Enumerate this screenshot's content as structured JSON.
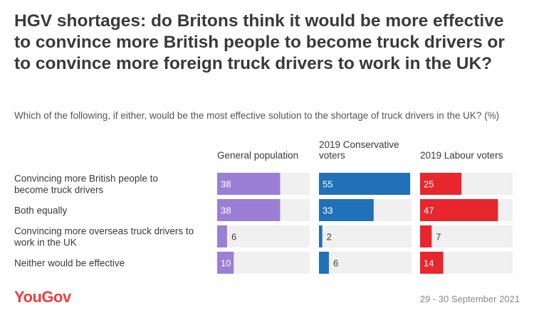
{
  "title": "HGV shortages: do Britons think it would be more effective to convince more British people to become truck drivers or to convince more foreign truck drivers to work in the UK?",
  "subtitle": "Which of the following, if either, would be the most effective solution to the shortage of truck drivers in the UK? (%)",
  "footer": {
    "logo": "YouGov",
    "date": "29 - 30 September 2021"
  },
  "chart_data": {
    "type": "bar",
    "orientation": "horizontal",
    "categories": [
      [
        "Convincing more British people to",
        "become truck drivers"
      ],
      [
        "Both equally"
      ],
      [
        "Convincing more overseas truck drivers to",
        "work in the UK"
      ],
      [
        "Neither would be effective"
      ]
    ],
    "xlim": [
      0,
      100
    ],
    "series": [
      {
        "name": [
          "General population"
        ],
        "color": "#9b7fd6",
        "values": [
          38,
          38,
          6,
          10
        ]
      },
      {
        "name": [
          "2019 Conservative",
          "voters"
        ],
        "color": "#2071b8",
        "values": [
          55,
          33,
          2,
          6
        ]
      },
      {
        "name": [
          "2019 Labour voters"
        ],
        "color": "#e8262d",
        "values": [
          25,
          47,
          7,
          14
        ]
      }
    ]
  }
}
